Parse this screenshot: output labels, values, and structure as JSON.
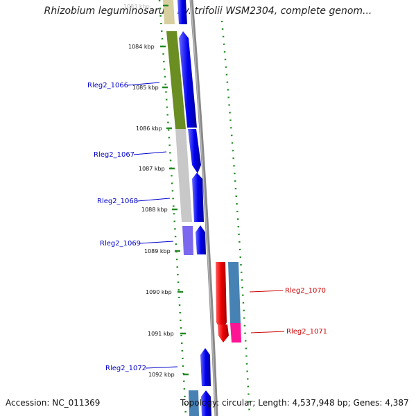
{
  "title": "Rhizobium leguminosarum bv. trifolii WSM2304, complete genom...",
  "footer": {
    "accession": "Accession: NC_011369",
    "topology": "Topology: circular; Length: 4,537,948 bp; Genes: 4,387"
  },
  "ruler": {
    "ticks": [
      "1083 kbp",
      "1084 kbp",
      "1085 kbp",
      "1086 kbp",
      "1087 kbp",
      "1088 kbp",
      "1089 kbp",
      "1090 kbp",
      "1091 kbp",
      "1092 kbp"
    ]
  },
  "genes": {
    "left": [
      "Rleg2_1066",
      "Rleg2_1067",
      "Rleg2_1068",
      "Rleg2_1069",
      "Rleg2_1072"
    ],
    "right": [
      "Rleg2_1070",
      "Rleg2_1071"
    ]
  },
  "colors": {
    "forward_strand": "#0000ee",
    "reverse_strand": "#ee0000",
    "backbone": "#888888",
    "tick_marks": "#228b22",
    "left_label": "#0000cc",
    "right_label": "#cc0000",
    "cog_olive": "#6b8e23",
    "cog_gray": "#c8c8c8",
    "cog_purple": "#7b68ee",
    "cog_steel": "#4682b4",
    "cog_pink": "#ff1493",
    "cog_khaki": "#d8cfa0"
  }
}
